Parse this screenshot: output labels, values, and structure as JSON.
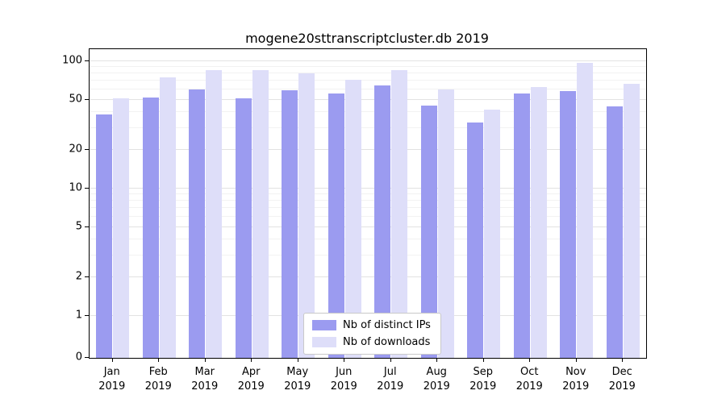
{
  "chart_data": {
    "type": "bar",
    "title": "mogene20sttranscriptcluster.db 2019",
    "categories": [
      "Jan",
      "Feb",
      "Mar",
      "Apr",
      "May",
      "Jun",
      "Jul",
      "Aug",
      "Sep",
      "Oct",
      "Nov",
      "Dec"
    ],
    "category_subline": "2019",
    "series": [
      {
        "name": "Nb of distinct IPs",
        "color": "#9b9bf0",
        "values": [
          38,
          52,
          60,
          51,
          59,
          56,
          65,
          45,
          33,
          56,
          58,
          44
        ]
      },
      {
        "name": "Nb of downloads",
        "color": "#dedef9",
        "values": [
          51,
          75,
          85,
          85,
          80,
          72,
          85,
          60,
          42,
          63,
          97,
          67
        ]
      }
    ],
    "yscale": "symlog",
    "y_major_ticks": [
      0,
      1,
      2,
      5,
      10,
      20,
      50,
      100
    ],
    "y_minor_ticks": [
      3,
      4,
      6,
      7,
      8,
      9,
      30,
      40,
      60,
      70,
      80,
      90
    ],
    "ylim": [
      0,
      150
    ],
    "grid": "on",
    "legend_position": "bottom-center-inside",
    "xlabel": "",
    "ylabel": ""
  }
}
